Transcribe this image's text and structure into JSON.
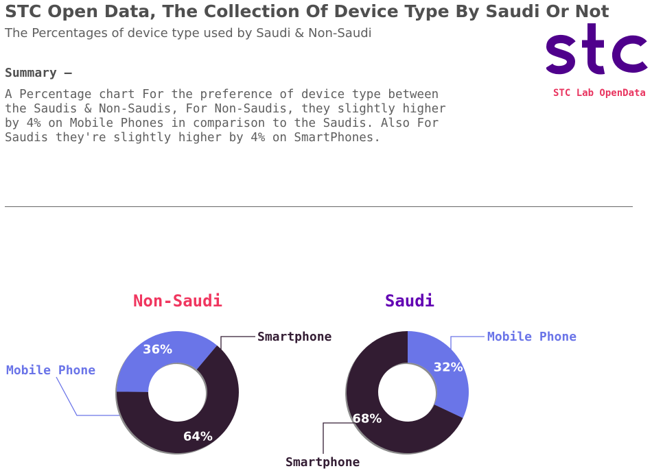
{
  "header": {
    "title": "STC Open Data, The Collection Of Device Type By Saudi Or Not",
    "subtitle": "The Percentages of device type used by Saudi & Non-Saudi"
  },
  "summary": {
    "heading": "Summary —",
    "body": "    A Percentage chart For the preference of device type between\nthe Saudis & Non-Saudis, For Non-Saudis, they slightly higher\nby 4% on Mobile Phones in comparison to the Saudis. Also For\nSaudis they're slightly higher by 4% on SmartPhones."
  },
  "logo": {
    "caption": "STC Lab OpenData",
    "color": "#4f008c"
  },
  "colors": {
    "smartphone": "#331c33",
    "mobile_phone": "#6a74e8",
    "non_saudi_title": "#f0365f",
    "saudi_title": "#6200b3",
    "smartphone_label": "#331c33",
    "mobile_label": "#6a74e8"
  },
  "chart_data": [
    {
      "type": "pie",
      "title": "Non-Saudi",
      "categories": [
        "Smartphone",
        "Mobile Phone"
      ],
      "values": [
        64,
        36
      ],
      "percent_labels": [
        "64%",
        "36%"
      ]
    },
    {
      "type": "pie",
      "title": "Saudi",
      "categories": [
        "Mobile Phone",
        "Smartphone"
      ],
      "values": [
        32,
        68
      ],
      "percent_labels": [
        "32%",
        "68%"
      ]
    }
  ]
}
